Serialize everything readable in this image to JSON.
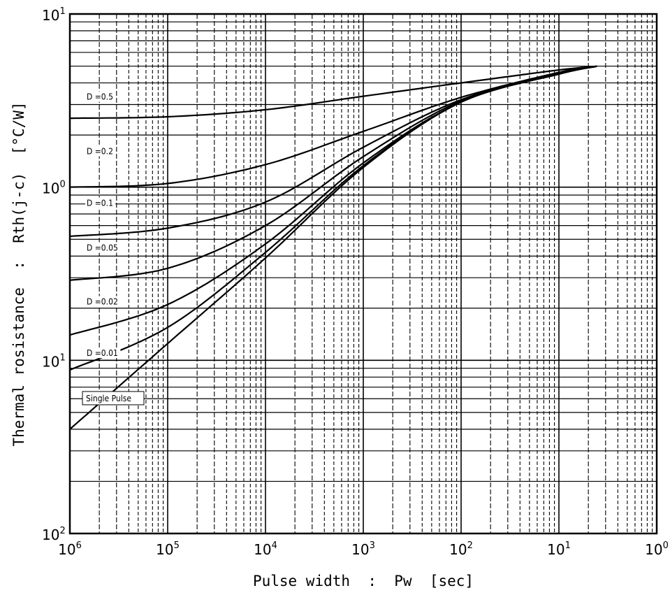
{
  "chart_data": {
    "type": "line",
    "title": "",
    "xlabel": "Pulse width  :  Pw  [sec]",
    "ylabel": "Thermal rosistance  :  Rth(j-c)  [°C/W]",
    "x_scale": "log",
    "y_scale": "log",
    "xlim": [
      1e-06,
      1
    ],
    "ylim": [
      0.01,
      10
    ],
    "grid": true,
    "x_ticks": [
      {
        "base": "10",
        "exp": "6",
        "value": 1e-06
      },
      {
        "base": "10",
        "exp": "5",
        "value": 1e-05
      },
      {
        "base": "10",
        "exp": "4",
        "value": 0.0001
      },
      {
        "base": "10",
        "exp": "3",
        "value": 0.001
      },
      {
        "base": "10",
        "exp": "2",
        "value": 0.01
      },
      {
        "base": "10",
        "exp": "1",
        "value": 0.1
      },
      {
        "base": "10",
        "exp": "0",
        "value": 1
      }
    ],
    "y_ticks": [
      {
        "base": "10",
        "exp": "1",
        "value": 10
      },
      {
        "base": "10",
        "exp": "0",
        "value": 1
      },
      {
        "base": "10",
        "exp": "1",
        "value": 0.1
      },
      {
        "base": "10",
        "exp": "2",
        "value": 0.01
      }
    ],
    "series": [
      {
        "name": "D =0.5",
        "x": [
          1e-06,
          1e-05,
          0.0001,
          0.001,
          0.01,
          0.1,
          0.25
        ],
        "y": [
          2.5,
          2.55,
          2.8,
          3.35,
          4.0,
          4.75,
          5.0
        ]
      },
      {
        "name": "D =0.2",
        "x": [
          1e-06,
          1e-05,
          0.0001,
          0.001,
          0.01,
          0.1,
          0.25
        ],
        "y": [
          1.0,
          1.05,
          1.35,
          2.1,
          3.3,
          4.6,
          5.0
        ]
      },
      {
        "name": "D =0.1",
        "x": [
          1e-06,
          1e-05,
          0.0001,
          0.001,
          0.01,
          0.1,
          0.25
        ],
        "y": [
          0.52,
          0.58,
          0.82,
          1.7,
          3.2,
          4.55,
          5.0
        ]
      },
      {
        "name": "D =0.05",
        "x": [
          1e-06,
          1e-05,
          0.0001,
          0.001,
          0.01,
          0.1,
          0.25
        ],
        "y": [
          0.29,
          0.34,
          0.6,
          1.5,
          3.15,
          4.5,
          5.0
        ]
      },
      {
        "name": "D =0.02",
        "x": [
          1e-06,
          1e-05,
          0.0001,
          0.001,
          0.01,
          0.1,
          0.25
        ],
        "y": [
          0.14,
          0.21,
          0.47,
          1.38,
          3.1,
          4.5,
          5.0
        ]
      },
      {
        "name": "D =0.01",
        "x": [
          1e-06,
          1e-05,
          0.0001,
          0.001,
          0.01,
          0.1,
          0.25
        ],
        "y": [
          0.088,
          0.155,
          0.42,
          1.33,
          3.1,
          4.5,
          5.0
        ]
      },
      {
        "name": "Single Pulse",
        "x": [
          1e-06,
          1e-05,
          0.0001,
          0.001,
          0.01,
          0.1,
          0.25
        ],
        "y": [
          0.04,
          0.125,
          0.39,
          1.3,
          3.1,
          4.5,
          5.0
        ]
      }
    ]
  }
}
